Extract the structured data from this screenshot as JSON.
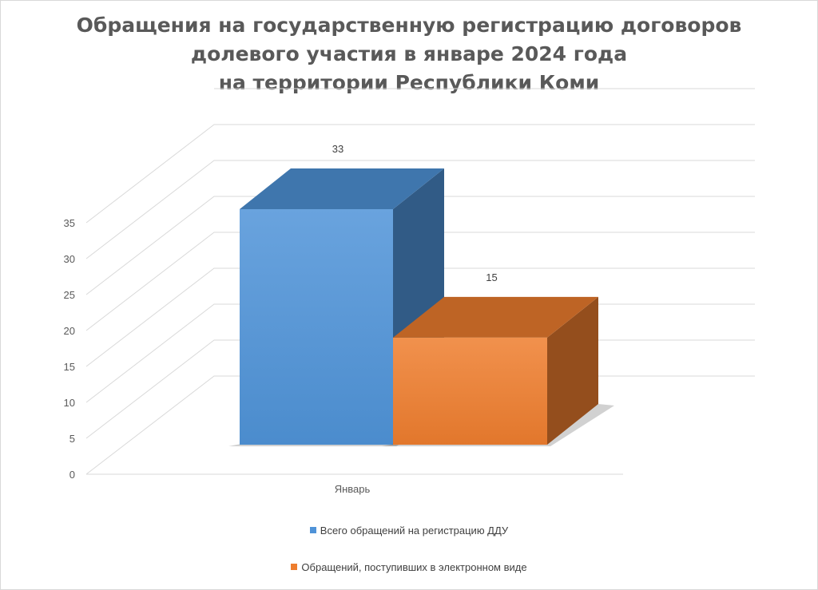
{
  "chart_data": {
    "type": "bar",
    "title_lines": [
      "Обращения на государственную регистрацию договоров",
      "долевого участия в январе 2024 года",
      "на территории Республики Коми"
    ],
    "categories": [
      "Январь"
    ],
    "series": [
      {
        "name": "Всего обращений на регистрацию ДДУ",
        "values": [
          33
        ],
        "color": "#4f93d8"
      },
      {
        "name": "Обращений, поступивших в электронном виде",
        "values": [
          15
        ],
        "color": "#ee7d2e"
      }
    ],
    "data_labels": [
      "33",
      "15"
    ],
    "y_ticks": [
      "0",
      "5",
      "10",
      "15",
      "20",
      "25",
      "30",
      "35"
    ],
    "ylim": [
      0,
      35
    ],
    "grid": true,
    "three_d": true,
    "legend_position": "bottom"
  }
}
